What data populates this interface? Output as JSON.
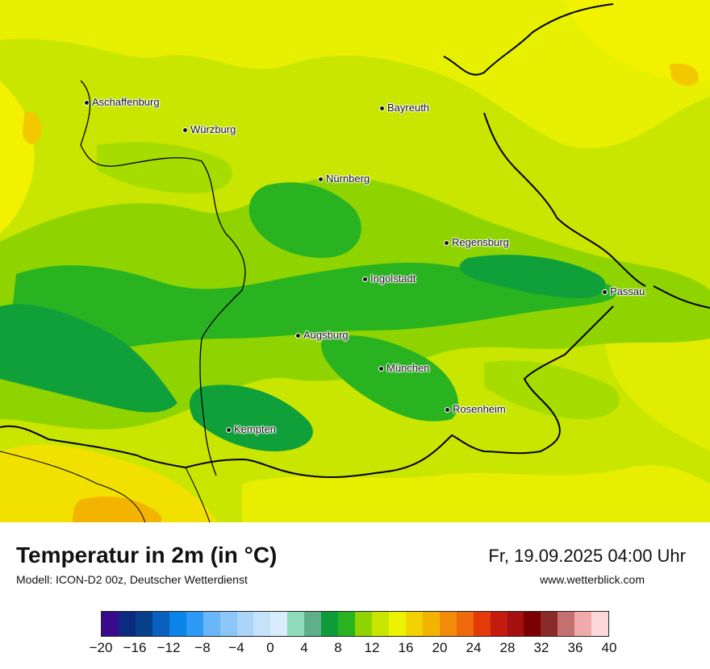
{
  "map": {
    "cities": [
      {
        "name": "Aschaffenburg"
      },
      {
        "name": "Würzburg"
      },
      {
        "name": "Bayreuth"
      },
      {
        "name": "Nürnberg"
      },
      {
        "name": "Regensburg"
      },
      {
        "name": "Ingolstadt"
      },
      {
        "name": "Passau"
      },
      {
        "name": "Augsburg"
      },
      {
        "name": "München"
      },
      {
        "name": "Rosenheim"
      },
      {
        "name": "Kempten"
      }
    ],
    "colors": {
      "warm": "#d4ec00",
      "mid": "#a6dc00",
      "light_green": "#6fc61c",
      "green": "#2ab321",
      "dark_green": "#10a03a",
      "yellow": "#f2f200",
      "orange": "#f0d000",
      "border": "#000000"
    }
  },
  "footer": {
    "title": "Temperatur in 2m (in °C)",
    "model": "Modell: ICON-D2 00z, Deutscher Wetterdienst",
    "datetime": "Fr, 19.09.2025 04:00 Uhr",
    "website": "www.wetterblick.com"
  },
  "legend": {
    "colors": [
      "#3a0a8c",
      "#0c2a80",
      "#063f8a",
      "#0a5fbf",
      "#0a84e8",
      "#2d9bf5",
      "#6ab6f7",
      "#8cc6f8",
      "#aad4fa",
      "#c6e2fb",
      "#d9ecfc",
      "#8fdcba",
      "#5fb088",
      "#0e9c3a",
      "#2ab321",
      "#8fd400",
      "#c8e600",
      "#ecf200",
      "#f2d200",
      "#f2b400",
      "#f28a0a",
      "#ee6a0a",
      "#e43a0a",
      "#c41a10",
      "#a41010",
      "#7a0000",
      "#8a2a2a",
      "#c47070",
      "#f0aaaa",
      "#fcd8d8"
    ],
    "ticks": [
      "−20",
      "−16",
      "−12",
      "−8",
      "−4",
      "0",
      "4",
      "8",
      "12",
      "16",
      "20",
      "24",
      "28",
      "32",
      "36",
      "40"
    ]
  }
}
